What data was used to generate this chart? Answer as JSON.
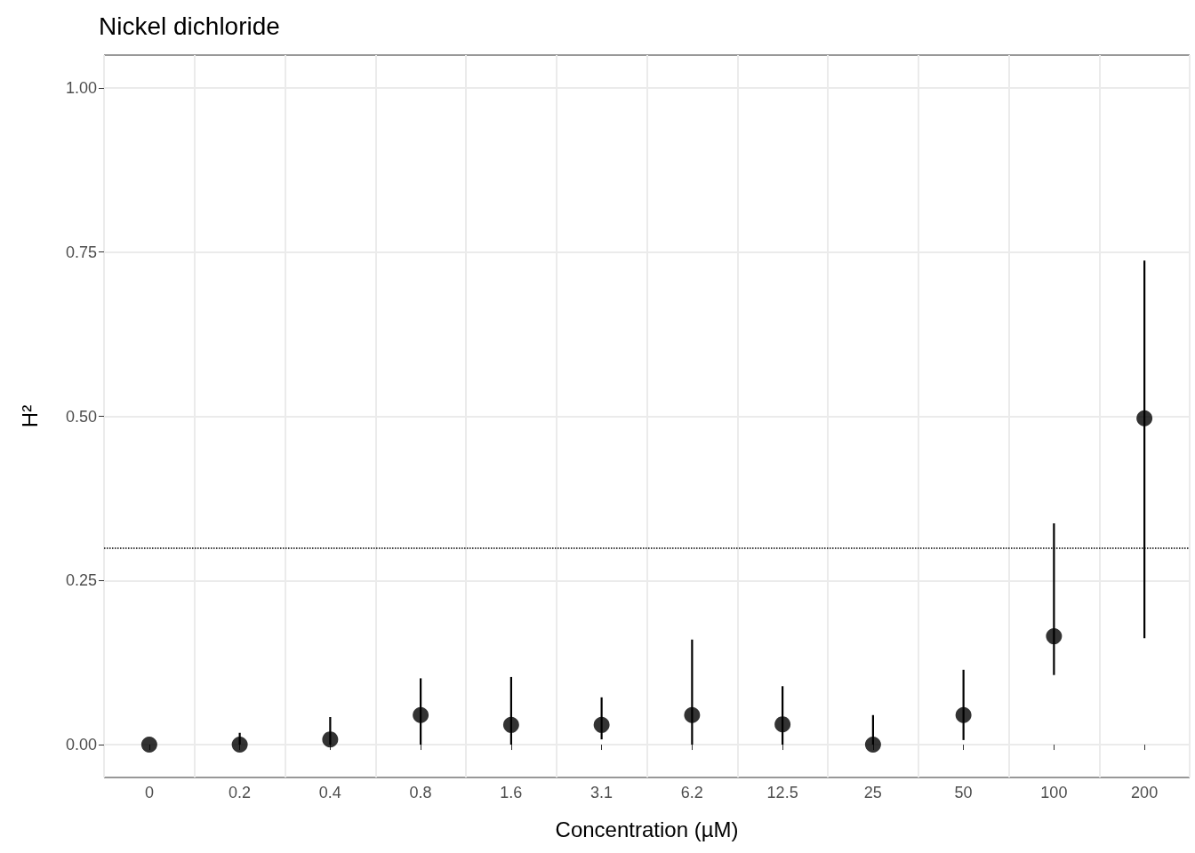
{
  "chart_data": {
    "type": "scatter",
    "title": "Nickel dichloride",
    "xlabel": "Concentration (µM)",
    "ylabel": "H²",
    "categories": [
      "0",
      "0.2",
      "0.4",
      "0.8",
      "1.6",
      "3.1",
      "6.2",
      "12.5",
      "25",
      "50",
      "100",
      "200"
    ],
    "values": [
      0,
      0,
      0.008,
      0.045,
      0.03,
      0.03,
      0.045,
      0.031,
      0,
      0.045,
      0.165,
      0.497
    ],
    "errors": [
      null,
      [
        0,
        0.018
      ],
      [
        0,
        0.042
      ],
      [
        0,
        0.101
      ],
      [
        0,
        0.103
      ],
      [
        0.008,
        0.072
      ],
      [
        0,
        0.16
      ],
      [
        0,
        0.089
      ],
      [
        0,
        0.045
      ],
      [
        0.007,
        0.114
      ],
      [
        0.106,
        0.337
      ],
      [
        0.162,
        0.737
      ]
    ],
    "color": "#000000",
    "marker": "circle",
    "grid": true,
    "ylim": [
      -0.05,
      1.05
    ],
    "yticks": [
      {
        "value": 0,
        "label": "0.00"
      },
      {
        "value": 0.25,
        "label": "0.25"
      },
      {
        "value": 0.5,
        "label": "0.50"
      },
      {
        "value": 0.75,
        "label": "0.75"
      },
      {
        "value": 1,
        "label": "1.00"
      }
    ],
    "ref_lines": [
      {
        "axis": "y",
        "value": 0.3,
        "line_style": "dotted",
        "color": "#000000"
      }
    ]
  }
}
